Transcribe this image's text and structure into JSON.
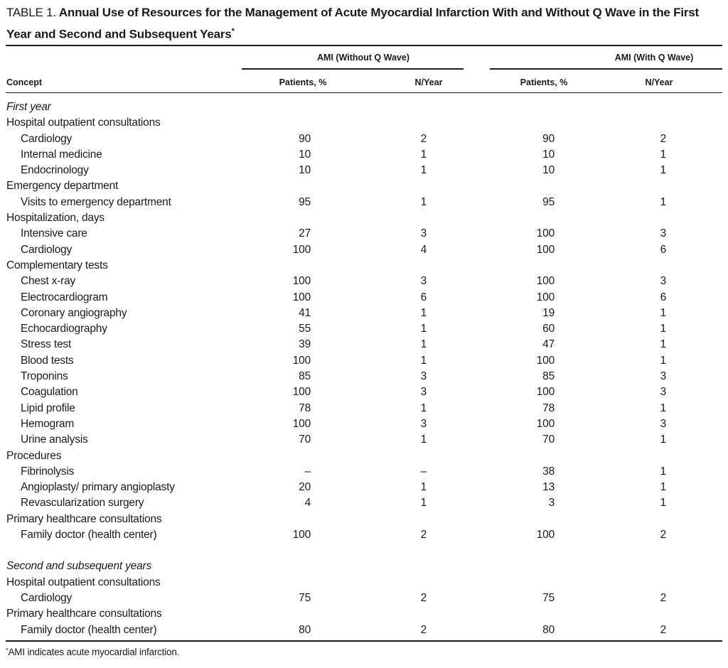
{
  "title": {
    "prefix": "TABLE 1.",
    "text": "Annual Use of Resources for the Management of Acute Myocardial Infarction With and Without Q Wave in the First Year and Second and Subsequent Years",
    "marker": "*"
  },
  "table": {
    "groups": [
      {
        "label": "AMI (Without Q Wave)"
      },
      {
        "label": "AMI (With Q Wave)"
      }
    ],
    "col_headers": [
      "Concept",
      "Patients, %",
      "N/Year",
      "Patients, %",
      "N/Year"
    ],
    "rows": [
      {
        "type": "section",
        "label": "First year"
      },
      {
        "type": "category",
        "label": "Hospital outpatient consultations"
      },
      {
        "type": "item",
        "label": "Cardiology",
        "values": [
          "90",
          "2",
          "90",
          "2"
        ]
      },
      {
        "type": "item",
        "label": "Internal medicine",
        "values": [
          "10",
          "1",
          "10",
          "1"
        ]
      },
      {
        "type": "item",
        "label": "Endocrinology",
        "values": [
          "10",
          "1",
          "10",
          "1"
        ]
      },
      {
        "type": "category",
        "label": "Emergency department"
      },
      {
        "type": "item",
        "label": "Visits to emergency department",
        "values": [
          "95",
          "1",
          "95",
          "1"
        ]
      },
      {
        "type": "category",
        "label": "Hospitalization, days"
      },
      {
        "type": "item",
        "label": "Intensive care",
        "values": [
          "27",
          "3",
          "100",
          "3"
        ]
      },
      {
        "type": "item",
        "label": "Cardiology",
        "values": [
          "100",
          "4",
          "100",
          "6"
        ]
      },
      {
        "type": "category",
        "label": "Complementary tests"
      },
      {
        "type": "item",
        "label": "Chest x-ray",
        "values": [
          "100",
          "3",
          "100",
          "3"
        ]
      },
      {
        "type": "item",
        "label": "Electrocardiogram",
        "values": [
          "100",
          "6",
          "100",
          "6"
        ]
      },
      {
        "type": "item",
        "label": "Coronary angiography",
        "values": [
          "41",
          "1",
          "19",
          "1"
        ]
      },
      {
        "type": "item",
        "label": "Echocardiography",
        "values": [
          "55",
          "1",
          "60",
          "1"
        ]
      },
      {
        "type": "item",
        "label": "Stress test",
        "values": [
          "39",
          "1",
          "47",
          "1"
        ]
      },
      {
        "type": "item",
        "label": "Blood tests",
        "values": [
          "100",
          "1",
          "100",
          "1"
        ]
      },
      {
        "type": "item",
        "label": "Troponins",
        "values": [
          "85",
          "3",
          "85",
          "3"
        ]
      },
      {
        "type": "item",
        "label": "Coagulation",
        "values": [
          "100",
          "3",
          "100",
          "3"
        ]
      },
      {
        "type": "item",
        "label": "Lipid profile",
        "values": [
          "78",
          "1",
          "78",
          "1"
        ]
      },
      {
        "type": "item",
        "label": "Hemogram",
        "values": [
          "100",
          "3",
          "100",
          "3"
        ]
      },
      {
        "type": "item",
        "label": "Urine analysis",
        "values": [
          "70",
          "1",
          "70",
          "1"
        ]
      },
      {
        "type": "category",
        "label": "Procedures"
      },
      {
        "type": "item",
        "label": "Fibrinolysis",
        "values": [
          "–",
          "–",
          "38",
          "1"
        ]
      },
      {
        "type": "item",
        "label": "Angioplasty/ primary angioplasty",
        "values": [
          "20",
          "1",
          "13",
          "1"
        ]
      },
      {
        "type": "item",
        "label": "Revascularization surgery",
        "values": [
          "4",
          "1",
          "3",
          "1"
        ]
      },
      {
        "type": "category",
        "label": "Primary healthcare consultations"
      },
      {
        "type": "item",
        "label": "Family doctor (health center)",
        "values": [
          "100",
          "2",
          "100",
          "2"
        ]
      },
      {
        "type": "spacer"
      },
      {
        "type": "section",
        "label": "Second and subsequent years"
      },
      {
        "type": "category",
        "label": "Hospital outpatient consultations"
      },
      {
        "type": "item",
        "label": "Cardiology",
        "values": [
          "75",
          "2",
          "75",
          "2"
        ]
      },
      {
        "type": "category",
        "label": "Primary healthcare consultations"
      },
      {
        "type": "item",
        "label": "Family doctor (health center)",
        "values": [
          "80",
          "2",
          "80",
          "2"
        ]
      }
    ]
  },
  "footnote": {
    "marker": "*",
    "text": "AMI indicates acute myocardial infarction."
  }
}
